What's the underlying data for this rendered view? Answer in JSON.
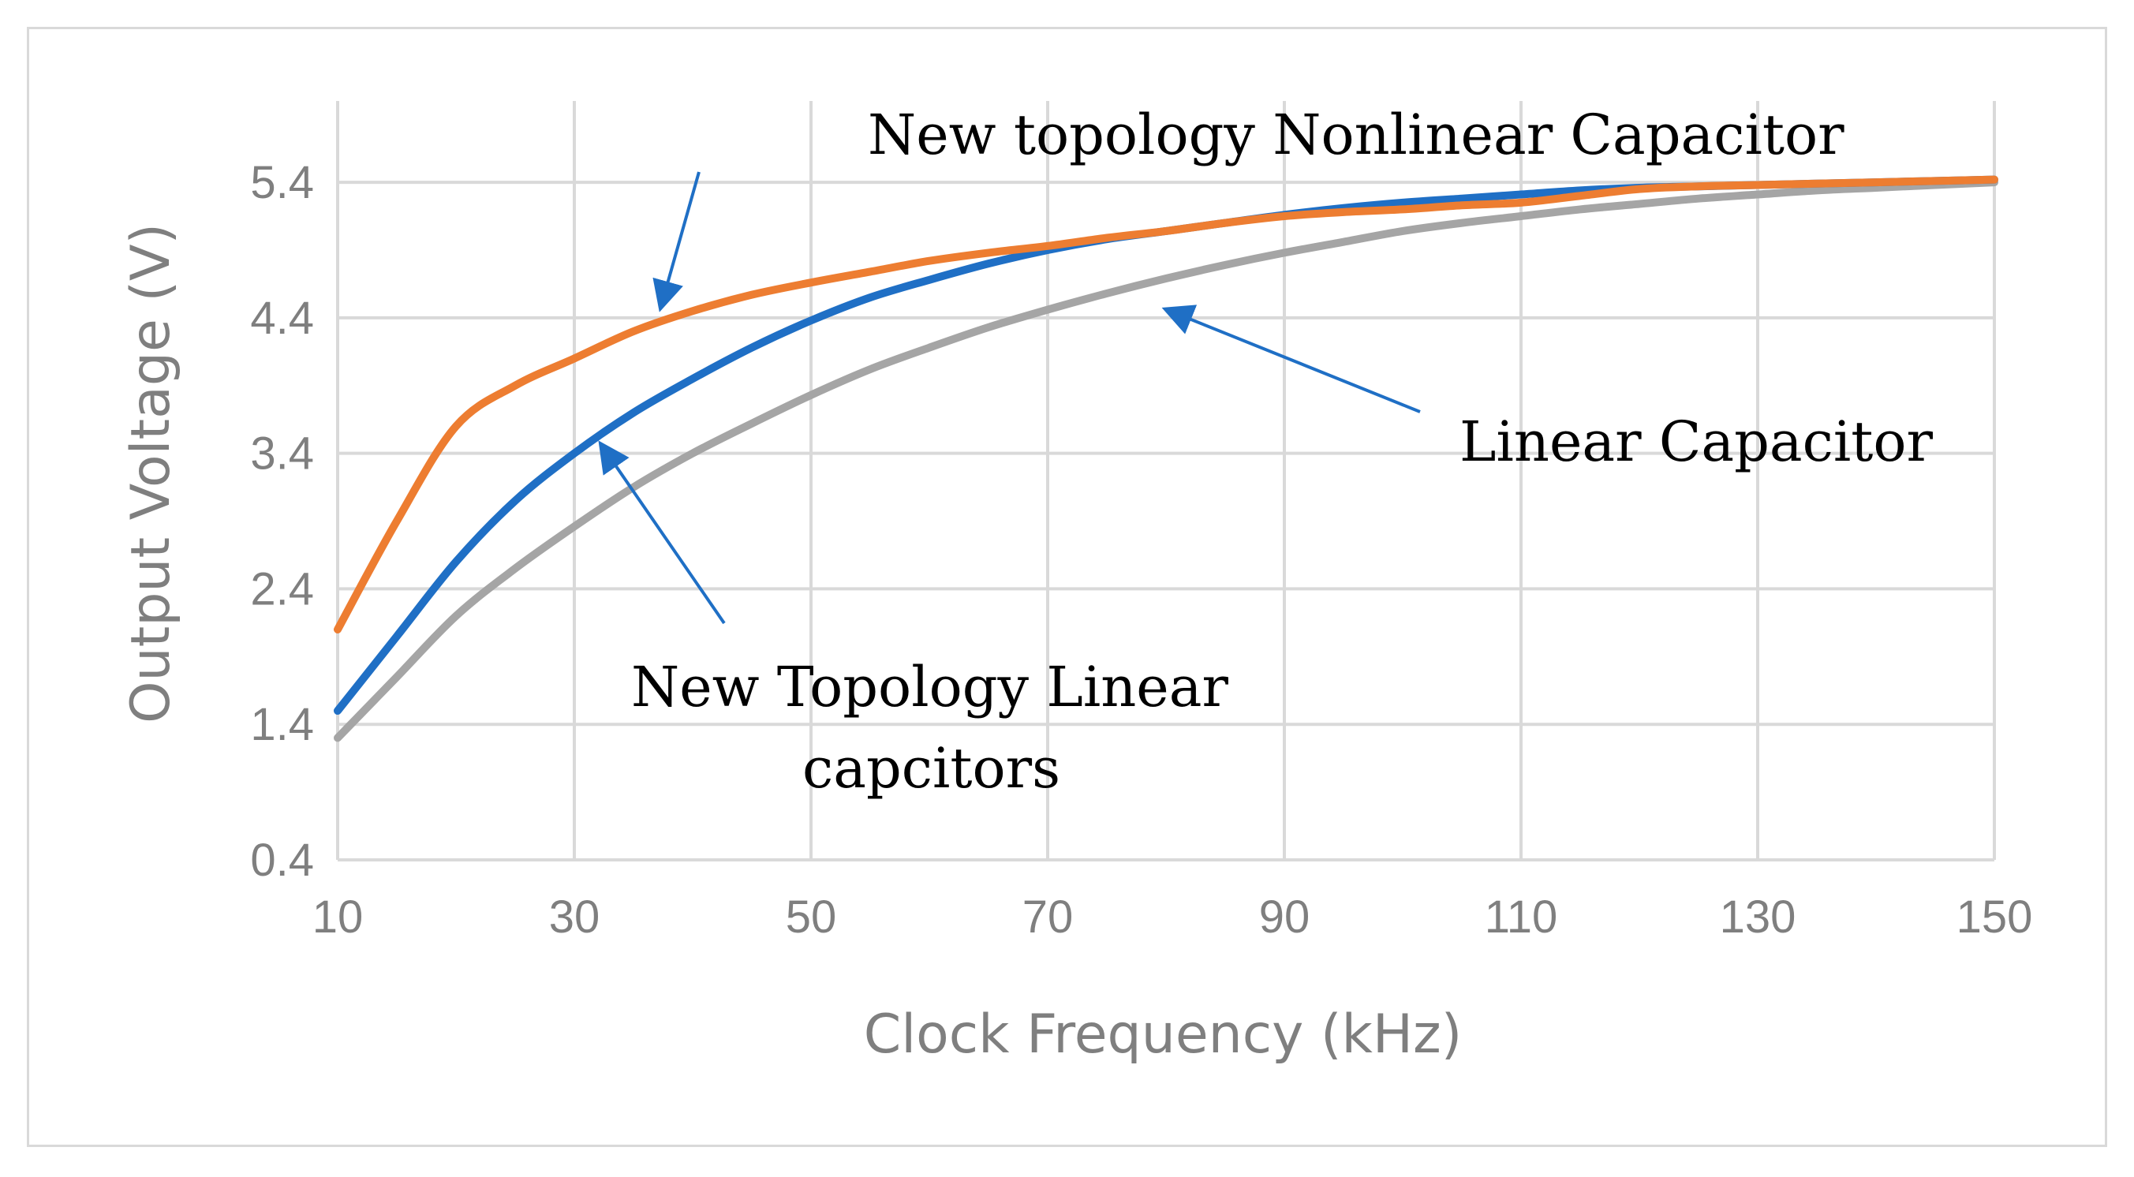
{
  "chart_data": {
    "type": "line",
    "title": "",
    "xlabel": "Clock Frequency (kHz)",
    "ylabel": "Output Voltage (V)",
    "xlim": [
      10,
      150
    ],
    "ylim": [
      0.4,
      6.0
    ],
    "x_ticks": [
      "10",
      "30",
      "50",
      "70",
      "90",
      "110",
      "130",
      "150"
    ],
    "y_ticks": [
      "0.4",
      "1.4",
      "2.4",
      "3.4",
      "4.4",
      "5.4"
    ],
    "grid": true,
    "legend": "none",
    "x": [
      10,
      15,
      20,
      25,
      30,
      35,
      40,
      45,
      50,
      55,
      60,
      65,
      70,
      75,
      80,
      85,
      90,
      95,
      100,
      105,
      110,
      115,
      120,
      125,
      130,
      135,
      140,
      145,
      150
    ],
    "series": [
      {
        "color": "#ed7d31",
        "values": [
          2.1,
          2.9,
          3.6,
          3.9,
          4.1,
          4.3,
          4.45,
          4.57,
          4.66,
          4.74,
          4.82,
          4.88,
          4.93,
          4.99,
          5.04,
          5.1,
          5.15,
          5.18,
          5.2,
          5.23,
          5.25,
          5.3,
          5.35,
          5.37,
          5.38,
          5.39,
          5.4,
          5.41,
          5.42
        ]
      },
      {
        "color": "#1f6fc5",
        "values": [
          1.5,
          2.05,
          2.6,
          3.05,
          3.4,
          3.7,
          3.95,
          4.18,
          4.38,
          4.55,
          4.68,
          4.8,
          4.9,
          4.98,
          5.04,
          5.1,
          5.16,
          5.21,
          5.25,
          5.28,
          5.31,
          5.34,
          5.36,
          5.37,
          5.38,
          5.39,
          5.4,
          5.41,
          5.42
        ]
      },
      {
        "color": "#a5a5a5",
        "values": [
          1.3,
          1.75,
          2.2,
          2.55,
          2.86,
          3.15,
          3.4,
          3.62,
          3.83,
          4.02,
          4.18,
          4.33,
          4.46,
          4.58,
          4.69,
          4.79,
          4.88,
          4.96,
          5.04,
          5.1,
          5.15,
          5.2,
          5.24,
          5.28,
          5.31,
          5.34,
          5.36,
          5.38,
          5.4
        ]
      }
    ],
    "annotations": [
      {
        "text": "New topology Nonlinear Capacitor",
        "arrow_to": [
          37,
          4.45
        ]
      },
      {
        "text": "Linear Capacitor",
        "arrow_to": [
          80,
          4.6
        ]
      },
      {
        "text": "New Topology Linear",
        "text2": "capcitors",
        "arrow_to": [
          32,
          3.45
        ]
      }
    ],
    "arrow_color": "#1f6fc5"
  }
}
